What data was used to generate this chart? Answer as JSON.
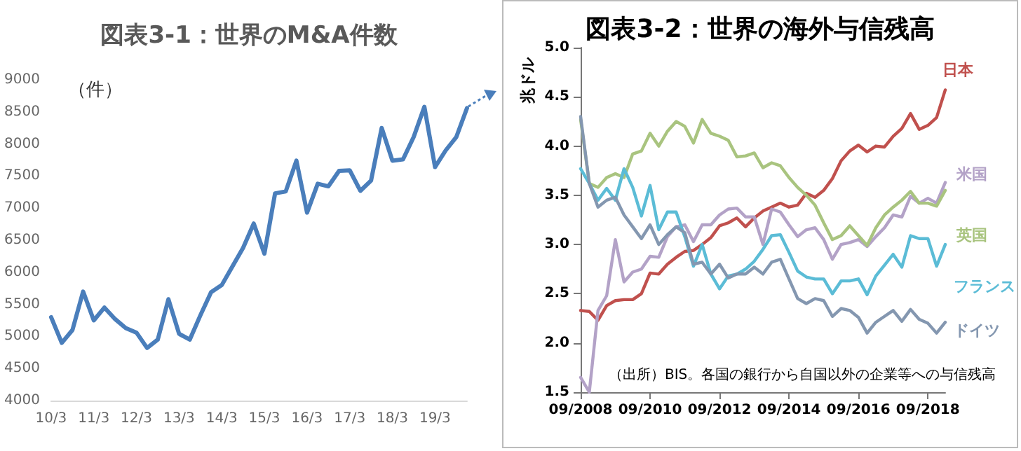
{
  "chart_data": [
    {
      "type": "line",
      "title": "図表3-1：世界のM&A件数",
      "ylabel": "（件）",
      "categories": [
        "10/3",
        null,
        null,
        null,
        "11/3",
        null,
        null,
        null,
        "12/3",
        null,
        null,
        null,
        "13/3",
        null,
        null,
        null,
        "14/3",
        null,
        null,
        null,
        "15/3",
        null,
        null,
        null,
        "16/3",
        null,
        null,
        null,
        "17/3",
        null,
        null,
        null,
        "18/3",
        null,
        null,
        null,
        "19/3",
        null,
        null,
        null
      ],
      "series": [
        {
          "color": "#4a7ebb",
          "values": [
            5300,
            4900,
            5100,
            5700,
            5250,
            5450,
            5270,
            5130,
            5060,
            4820,
            4950,
            5580,
            5040,
            4950,
            5330,
            5690,
            5800,
            6090,
            6380,
            6760,
            6290,
            7230,
            7260,
            7740,
            6930,
            7380,
            7340,
            7580,
            7590,
            7270,
            7430,
            8250,
            7740,
            7760,
            8110,
            8580,
            7640,
            7900,
            8110,
            8560
          ]
        }
      ],
      "ylim": [
        4000,
        9000
      ],
      "yticks": [
        4000,
        4500,
        5000,
        5500,
        6000,
        6500,
        7000,
        7500,
        8000,
        8500,
        9000
      ],
      "grid": false,
      "legend": false,
      "marker": "none",
      "line_style": "solid"
    },
    {
      "type": "line",
      "title": "図表3-2：世界の海外与信残高",
      "ylabel": "兆ドル",
      "annotations": [
        "（出所）BIS。各国の銀行から自国以外の企業等への与信残高"
      ],
      "categories": [
        "09/2008",
        null,
        null,
        null,
        null,
        null,
        null,
        null,
        "09/2010",
        null,
        null,
        null,
        null,
        null,
        null,
        null,
        "09/2012",
        null,
        null,
        null,
        null,
        null,
        null,
        null,
        "09/2014",
        null,
        null,
        null,
        null,
        null,
        null,
        null,
        "09/2016",
        null,
        null,
        null,
        null,
        null,
        null,
        null,
        "09/2018",
        null,
        null
      ],
      "series": [
        {
          "name": "日本",
          "color": "#c0504d",
          "values": [
            2.33,
            2.32,
            2.23,
            2.38,
            2.43,
            2.44,
            2.44,
            2.5,
            2.71,
            2.7,
            2.8,
            2.87,
            2.93,
            2.94,
            3.0,
            3.07,
            3.19,
            3.22,
            3.27,
            3.18,
            3.27,
            3.34,
            3.38,
            3.42,
            3.38,
            3.4,
            3.52,
            3.48,
            3.55,
            3.67,
            3.85,
            3.95,
            4.01,
            3.94,
            4.0,
            3.99,
            4.1,
            4.18,
            4.33,
            4.17,
            4.21,
            4.29,
            4.57
          ]
        },
        {
          "name": "米国",
          "color": "#b3a2c7",
          "values": [
            1.65,
            1.5,
            2.33,
            2.48,
            3.05,
            2.62,
            2.72,
            2.75,
            2.88,
            2.87,
            3.08,
            3.18,
            3.2,
            3.03,
            3.2,
            3.2,
            3.3,
            3.36,
            3.37,
            3.28,
            3.28,
            3.0,
            3.36,
            3.33,
            3.2,
            3.08,
            3.15,
            3.17,
            3.05,
            2.85,
            3.0,
            3.02,
            3.05,
            2.98,
            3.08,
            3.17,
            3.3,
            3.28,
            3.49,
            3.42,
            3.47,
            3.42,
            3.63
          ]
        },
        {
          "name": "英国",
          "color": "#a9c47f",
          "values": [
            4.27,
            3.62,
            3.58,
            3.68,
            3.72,
            3.68,
            3.92,
            3.95,
            4.13,
            4.0,
            4.15,
            4.25,
            4.2,
            4.03,
            4.27,
            4.13,
            4.1,
            4.06,
            3.89,
            3.9,
            3.93,
            3.78,
            3.83,
            3.8,
            3.68,
            3.58,
            3.5,
            3.4,
            3.22,
            3.05,
            3.09,
            3.19,
            3.09,
            2.99,
            3.17,
            3.3,
            3.38,
            3.45,
            3.54,
            3.42,
            3.42,
            3.39,
            3.55
          ]
        },
        {
          "name": "フランス",
          "color": "#5bbcd6",
          "values": [
            3.77,
            3.62,
            3.45,
            3.57,
            3.45,
            3.77,
            3.58,
            3.29,
            3.6,
            3.15,
            3.33,
            3.33,
            3.08,
            2.78,
            3.0,
            2.7,
            2.55,
            2.68,
            2.7,
            2.75,
            2.83,
            2.95,
            3.09,
            3.1,
            2.92,
            2.73,
            2.67,
            2.65,
            2.65,
            2.5,
            2.63,
            2.63,
            2.65,
            2.49,
            2.68,
            2.79,
            2.9,
            2.77,
            3.09,
            3.06,
            3.06,
            2.78,
            3.0
          ]
        },
        {
          "name": "ドイツ",
          "color": "#8497b0",
          "values": [
            4.3,
            3.62,
            3.38,
            3.45,
            3.48,
            3.3,
            3.18,
            3.06,
            3.2,
            3.0,
            3.1,
            3.18,
            3.12,
            2.8,
            2.82,
            2.7,
            2.8,
            2.66,
            2.7,
            2.7,
            2.77,
            2.7,
            2.82,
            2.85,
            2.65,
            2.45,
            2.4,
            2.45,
            2.43,
            2.27,
            2.35,
            2.33,
            2.26,
            2.1,
            2.21,
            2.27,
            2.33,
            2.22,
            2.34,
            2.24,
            2.2,
            2.1,
            2.21
          ]
        }
      ],
      "ylim": [
        1.5,
        5.0
      ],
      "yticks": [
        {
          "value": 1.5,
          "label": "1.5"
        },
        {
          "value": 2,
          "label": "2.0"
        },
        {
          "value": 2.5,
          "label": "2.5"
        },
        {
          "value": 3,
          "label": "3.0"
        },
        {
          "value": 3.5,
          "label": "3.5"
        },
        {
          "value": 4,
          "label": "4.0"
        },
        {
          "value": 4.5,
          "label": "4.5"
        },
        {
          "value": 5,
          "label": "5.0"
        }
      ],
      "grid": false,
      "legend": false,
      "marker": "none",
      "line_style": "solid"
    }
  ]
}
